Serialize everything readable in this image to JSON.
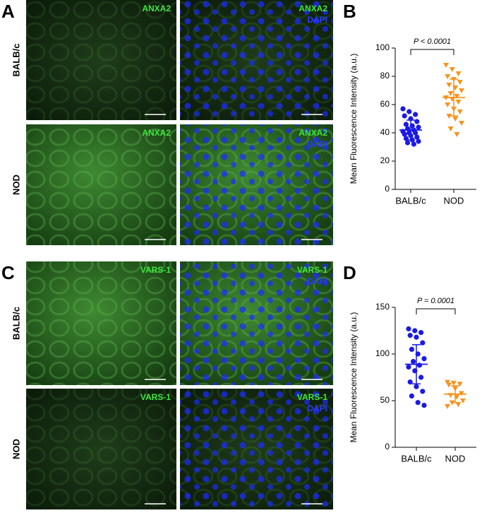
{
  "image_panels": [
    {
      "letter": "A",
      "rows": [
        "BALB/c",
        "NOD"
      ],
      "marker": "ANXA2",
      "counterstain": "DAPI"
    },
    {
      "letter": "C",
      "rows": [
        "BALB/c",
        "NOD"
      ],
      "marker": "VARS-1",
      "counterstain": "DAPI"
    }
  ],
  "chart_data": [
    {
      "type": "dot",
      "panel_letter": "B",
      "ylabel": "Mean Fluorescence Intensity (a.u.)",
      "annotation": "P < 0.0001",
      "ylim": [
        0,
        100
      ],
      "yticks": [
        0,
        20,
        40,
        60,
        80,
        100
      ],
      "groups": [
        {
          "label": "BALB/c",
          "color": "#1a1ae6",
          "marker": "circle",
          "mean": 42,
          "sd": 7,
          "values": [
            57,
            55,
            53,
            52,
            50,
            48,
            46,
            45,
            44,
            43,
            42,
            41,
            40,
            40,
            39,
            38,
            37,
            36,
            35,
            34,
            33,
            32
          ]
        },
        {
          "label": "NOD",
          "color": "#f7931e",
          "marker": "triangle",
          "mean": 65,
          "sd": 13,
          "values": [
            88,
            85,
            82,
            80,
            78,
            76,
            74,
            72,
            70,
            68,
            66,
            65,
            64,
            62,
            60,
            57,
            55,
            52,
            50,
            47,
            43,
            39
          ]
        }
      ]
    },
    {
      "type": "dot",
      "panel_letter": "D",
      "ylabel": "Mean Fluorescence Intensity (a.u.)",
      "annotation": "P = 0.0001",
      "ylim": [
        0,
        150
      ],
      "yticks": [
        0,
        50,
        100,
        150
      ],
      "groups": [
        {
          "label": "BALB/c",
          "color": "#1a1ae6",
          "marker": "circle",
          "mean": 89,
          "sd": 21,
          "values": [
            127,
            125,
            123,
            120,
            118,
            112,
            105,
            100,
            95,
            92,
            88,
            86,
            82,
            75,
            70,
            65,
            60,
            55,
            48,
            45
          ]
        },
        {
          "label": "NOD",
          "color": "#f7931e",
          "marker": "triangle",
          "mean": 57,
          "sd": 9,
          "values": [
            70,
            69,
            68,
            67,
            63,
            58,
            56,
            54,
            50,
            48,
            46,
            44
          ]
        }
      ]
    }
  ]
}
